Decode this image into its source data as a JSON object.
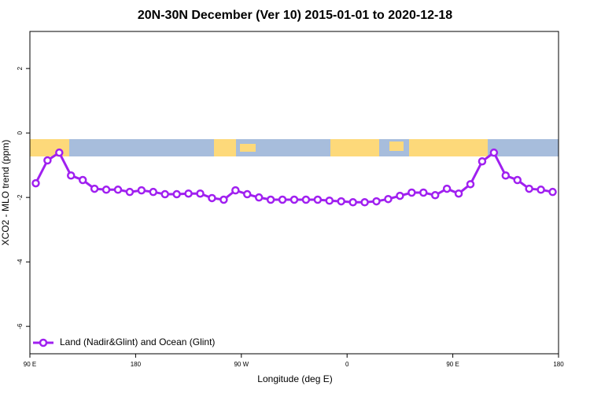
{
  "chart_data": {
    "type": "line",
    "title": "20N-30N December (Ver 10)   2015-01-01 to 2020-12-18",
    "x_label": "Longitude (deg E)",
    "y_label": "XCO2 - MLO trend (ppm)",
    "x": [
      95,
      105,
      115,
      125,
      135,
      145,
      155,
      165,
      175,
      185,
      195,
      205,
      215,
      225,
      235,
      245,
      255,
      265,
      275,
      285,
      295,
      305,
      315,
      325,
      335,
      345,
      355,
      365,
      375,
      385,
      395,
      405,
      415,
      425,
      435,
      445,
      455,
      465,
      475,
      485,
      495,
      505,
      515,
      525,
      535
    ],
    "series": [
      {
        "name": "Land (Nadir&Glint) and Ocean (Glint)",
        "color": "#a020f0",
        "values": [
          -1.56,
          -0.85,
          -0.61,
          -1.32,
          -1.46,
          -1.73,
          -1.76,
          -1.76,
          -1.83,
          -1.78,
          -1.83,
          -1.9,
          -1.9,
          -1.88,
          -1.88,
          -2.02,
          -2.07,
          -1.78,
          -1.9,
          -2.0,
          -2.07,
          -2.07,
          -2.07,
          -2.07,
          -2.07,
          -2.1,
          -2.12,
          -2.15,
          -2.15,
          -2.12,
          -2.05,
          -1.95,
          -1.85,
          -1.85,
          -1.93,
          -1.73,
          -1.88,
          -1.59,
          -0.88,
          -0.61,
          -1.32,
          -1.46,
          -1.73,
          -1.76,
          -1.83
        ]
      }
    ],
    "xlim": [
      90,
      540
    ],
    "xticks": [
      {
        "value": 90,
        "label": "90 E"
      },
      180,
      {
        "value": 270,
        "label": "90 W"
      },
      {
        "value": 360,
        "label": "0"
      },
      {
        "value": 450,
        "label": "90 E"
      },
      {
        "value": 540,
        "label": "180"
      }
    ],
    "ylim": [
      -6.85,
      3.15
    ],
    "yticks": [
      -6,
      -4,
      -2,
      0,
      2
    ],
    "legend": "bottom-left"
  }
}
